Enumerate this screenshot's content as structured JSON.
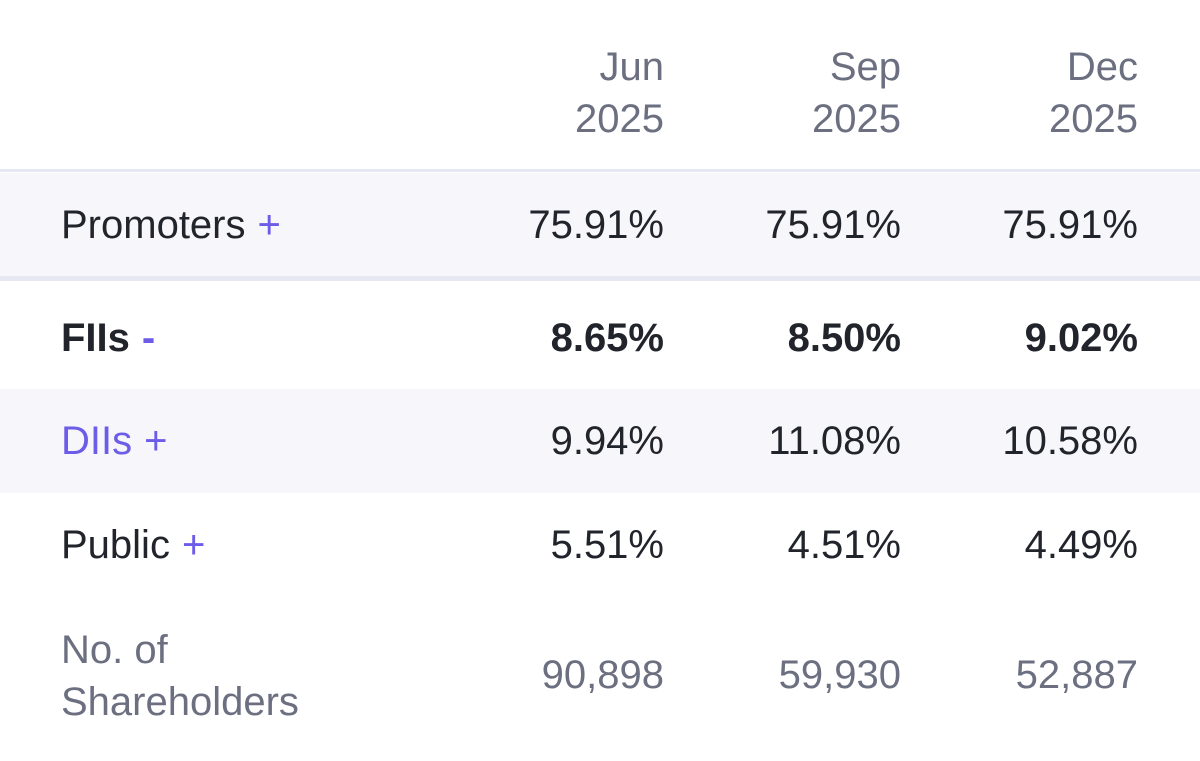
{
  "header": {
    "columns": [
      {
        "month": "Jun",
        "year": "2025"
      },
      {
        "month": "Sep",
        "year": "2025"
      },
      {
        "month": "Dec",
        "year": "2025"
      }
    ]
  },
  "rows": [
    {
      "label": "Promoters",
      "toggle": "+",
      "values": [
        "75.91%",
        "75.91%",
        "75.91%"
      ]
    },
    {
      "label": "FIIs",
      "toggle": "-",
      "values": [
        "8.65%",
        "8.50%",
        "9.02%"
      ]
    },
    {
      "label": "DIIs",
      "toggle": "+",
      "values": [
        "9.94%",
        "11.08%",
        "10.58%"
      ]
    },
    {
      "label": "Public",
      "toggle": "+",
      "values": [
        "5.51%",
        "4.51%",
        "4.49%"
      ]
    }
  ],
  "shareholders": {
    "label_line1": "No. of",
    "label_line2": "Shareholders",
    "values": [
      "90,898",
      "59,930",
      "52,887"
    ]
  },
  "colors": {
    "accent": "#6c5ce7",
    "muted_text": "#6b6f80",
    "primary_text": "#22242c",
    "row_highlight": "#f6f6fb",
    "divider": "#e6e8f3"
  }
}
